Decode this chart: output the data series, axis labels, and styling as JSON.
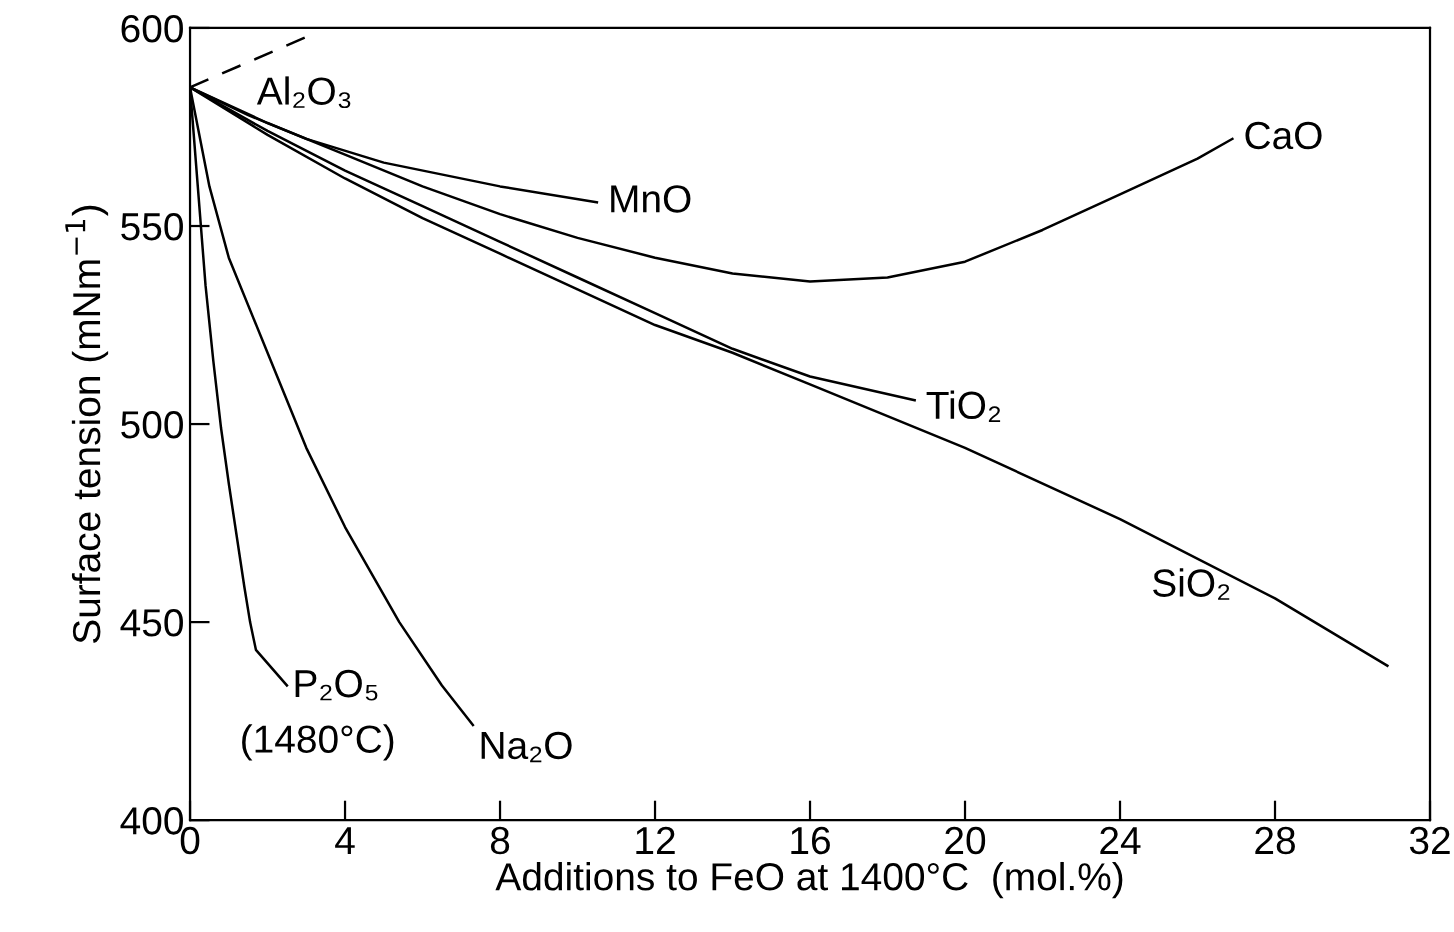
{
  "chart_data": {
    "type": "line",
    "xlabel": "Additions to FeO at 1400°C  (mol.%)",
    "ylabel": "Surface tension (mNm$^{−1}$)",
    "xlim": [
      0,
      32
    ],
    "ylim": [
      400,
      600
    ],
    "xticks": [
      0,
      4,
      8,
      12,
      16,
      20,
      24,
      28,
      32
    ],
    "yticks": [
      400,
      450,
      500,
      550,
      600
    ],
    "grid": false,
    "legend": false,
    "marker": "none",
    "series": [
      {
        "name": "Al₂O₃",
        "color": "#000000",
        "line_style": "dashed",
        "x": [
          0,
          3.3
        ],
        "values": [
          585,
          599
        ]
      },
      {
        "name": "MnO",
        "color": "#000000",
        "x": [
          0,
          1.5,
          3,
          5,
          8,
          10.5
        ],
        "values": [
          585,
          578,
          572,
          566,
          560,
          556
        ]
      },
      {
        "name": "CaO",
        "color": "#000000",
        "x": [
          0,
          2,
          4,
          6,
          8,
          10,
          12,
          14,
          16,
          18,
          20,
          22,
          24,
          26,
          26.9
        ],
        "values": [
          585,
          576,
          568,
          560,
          553,
          547,
          542,
          538,
          536,
          537,
          541,
          549,
          558,
          567,
          572
        ]
      },
      {
        "name": "TiO₂",
        "color": "#000000",
        "x": [
          0,
          2,
          4,
          6,
          8,
          10,
          12,
          14,
          16,
          18.7
        ],
        "values": [
          585,
          574,
          564,
          555,
          546,
          537,
          528,
          519,
          512,
          506
        ]
      },
      {
        "name": "SiO₂",
        "color": "#000000",
        "x": [
          0,
          2,
          4,
          6,
          8,
          10,
          12,
          14,
          16,
          20,
          24,
          28,
          30.9
        ],
        "values": [
          585,
          573,
          562,
          552,
          543,
          534,
          525,
          518,
          510,
          494,
          476,
          456,
          439
        ]
      },
      {
        "name": "Na₂O",
        "color": "#000000",
        "x": [
          0,
          0.5,
          1,
          2,
          3,
          4,
          5.4,
          6.5,
          7.3
        ],
        "values": [
          585,
          560,
          542,
          518,
          494,
          474,
          450,
          434,
          424
        ]
      },
      {
        "name": "P₂O₅",
        "color": "#000000",
        "x": [
          0,
          0.2,
          0.4,
          0.6,
          0.8,
          1.0,
          1.2,
          1.4,
          1.55,
          1.7,
          2.5
        ],
        "values": [
          585,
          560,
          535,
          516,
          499,
          485,
          472,
          459,
          450,
          443,
          434
        ]
      }
    ],
    "annotations": [
      {
        "text": "(1480°C)",
        "x": 2.5,
        "y": 434
      }
    ]
  }
}
